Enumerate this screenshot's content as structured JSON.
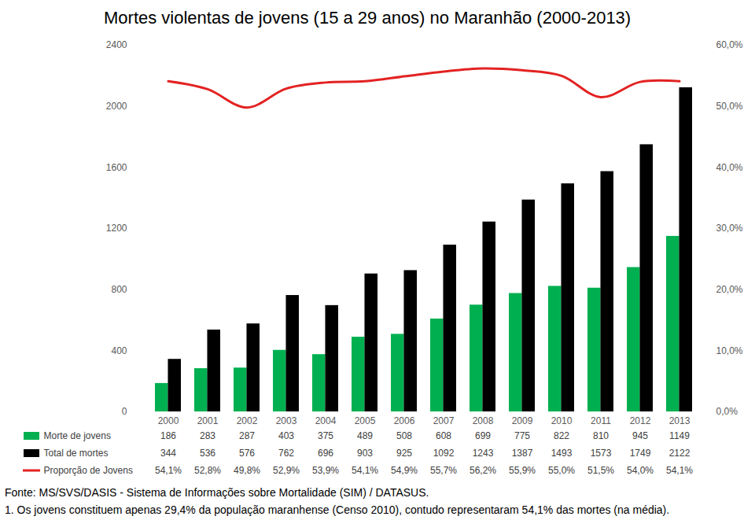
{
  "chart_data": {
    "type": "bar",
    "title": "Mortes violentas de jovens (15 a 29 anos) no Maranhão (2000-2013)",
    "categories": [
      "2000",
      "2001",
      "2002",
      "2003",
      "2004",
      "2005",
      "2006",
      "2007",
      "2008",
      "2009",
      "2010",
      "2011",
      "2012",
      "2013"
    ],
    "series": [
      {
        "name": "Morte de jovens",
        "type": "bar",
        "color": "#00b050",
        "values": [
          186,
          283,
          287,
          403,
          375,
          489,
          508,
          608,
          699,
          775,
          822,
          810,
          945,
          1149
        ]
      },
      {
        "name": "Total de mortes",
        "type": "bar",
        "color": "#000000",
        "values": [
          344,
          536,
          576,
          762,
          696,
          903,
          925,
          1092,
          1243,
          1387,
          1493,
          1573,
          1749,
          2122
        ]
      },
      {
        "name": "Proporção de Jovens",
        "type": "line",
        "axis": "y2",
        "color": "#e32222",
        "values": [
          54.1,
          52.8,
          49.8,
          52.9,
          53.9,
          54.1,
          54.9,
          55.7,
          56.2,
          55.9,
          55.0,
          51.5,
          54.0,
          54.1
        ],
        "value_labels": [
          "54,1%",
          "52,8%",
          "49,8%",
          "52,9%",
          "53,9%",
          "54,1%",
          "54,9%",
          "55,7%",
          "56,2%",
          "55,9%",
          "55,0%",
          "51,5%",
          "54,0%",
          "54,1%"
        ]
      }
    ],
    "ylim": [
      0,
      2400
    ],
    "yticks": [
      0,
      400,
      800,
      1200,
      1600,
      2000,
      2400
    ],
    "y2lim": [
      0,
      60
    ],
    "y2ticks": [
      {
        "value": 0,
        "label": "0,0%"
      },
      {
        "value": 10,
        "label": "10,0%"
      },
      {
        "value": 20,
        "label": "20,0%"
      },
      {
        "value": 30,
        "label": "30,0%"
      },
      {
        "value": 40,
        "label": "40,0%"
      },
      {
        "value": 50,
        "label": "50,0%"
      },
      {
        "value": 60,
        "label": "60,0%"
      }
    ],
    "grid": false,
    "data_labels": true,
    "annotations": [
      "Fonte: MS/SVS/DASIS - Sistema de Informações sobre Mortalidade (SIM) / DATASUS.",
      "1. Os jovens constituem apenas 29,4% da população maranhense (Censo 2010), contudo representaram 54,1% das mortes (na média)."
    ]
  }
}
